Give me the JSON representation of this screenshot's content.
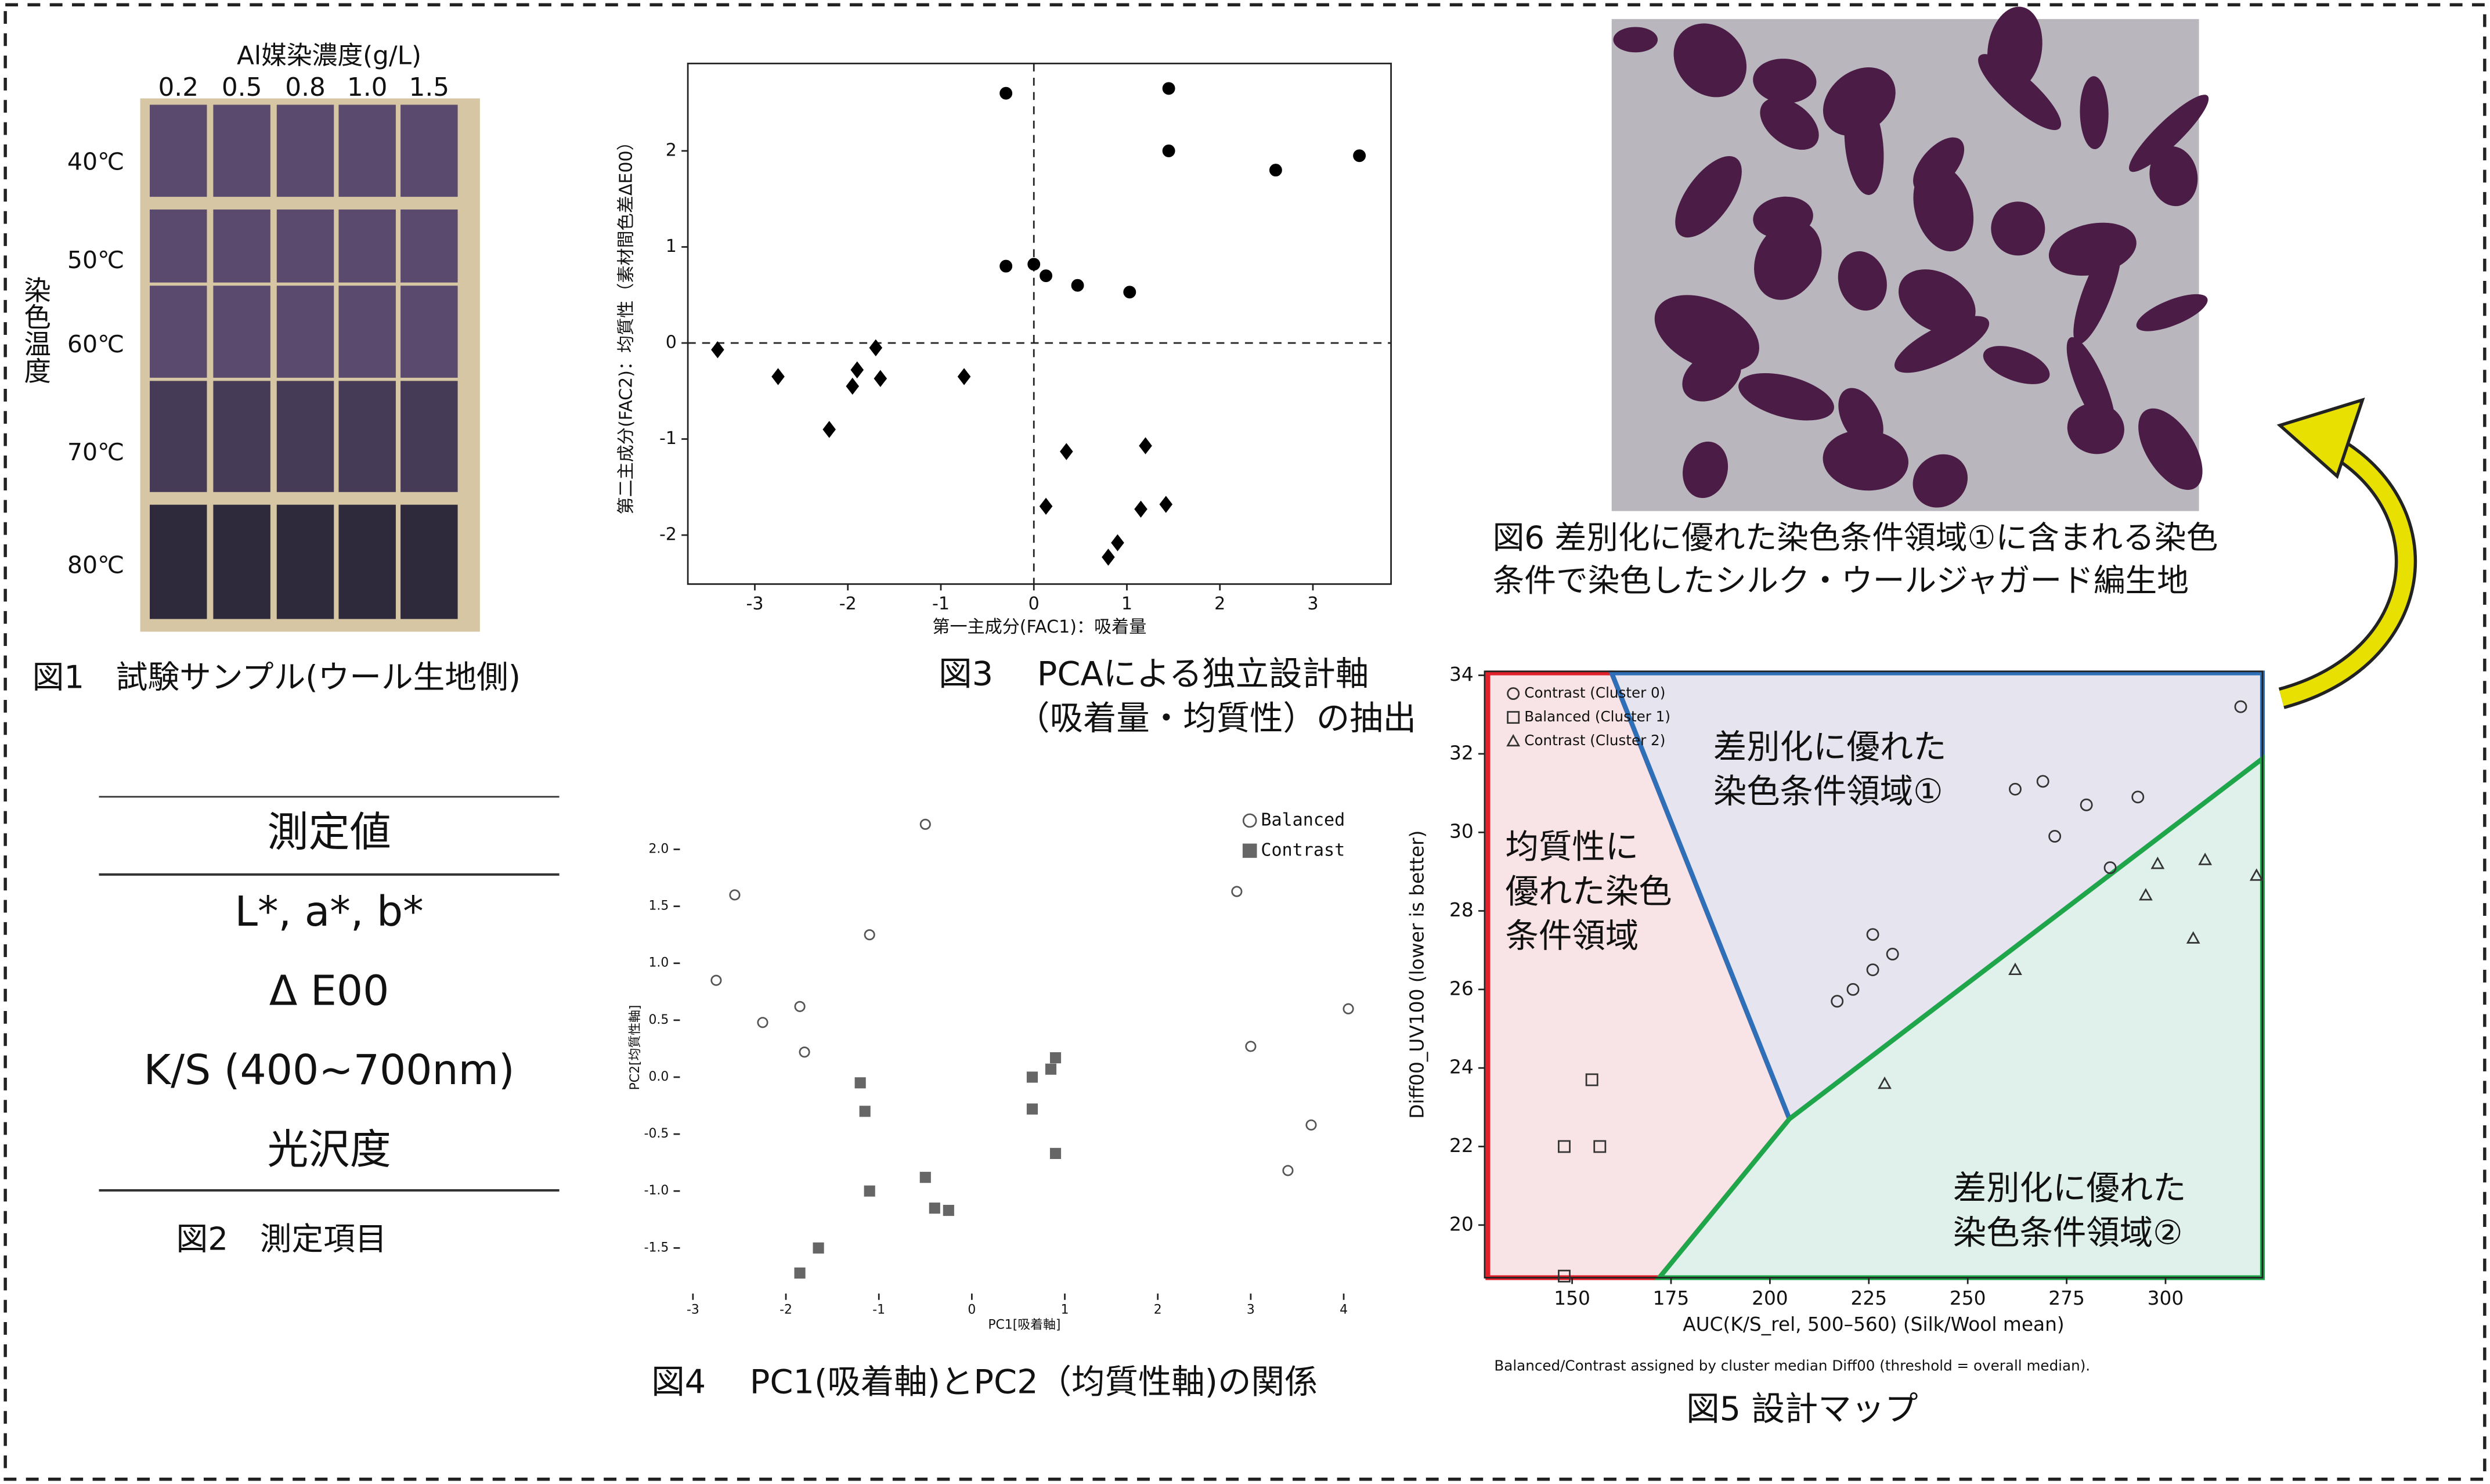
{
  "fig1": {
    "axis_title": "Al媒染濃度(g/L)",
    "concentrations": [
      "0.2",
      "0.5",
      "0.8",
      "1.0",
      "1.5"
    ],
    "temperatures": [
      "40℃",
      "50℃",
      "60℃",
      "70℃",
      "80℃"
    ],
    "row_title": "染色温度",
    "caption": "図1　試験サンプル(ウール生地側)"
  },
  "fig2": {
    "header": "測定値",
    "rows": [
      "L*, a*, b*",
      "Δ E00",
      "K/S (400~700nm)",
      "光沢度"
    ],
    "caption": "図2　測定項目"
  },
  "chart_data": [
    {
      "type": "scatter",
      "caption": [
        "図3　 PCAによる独立設計軸",
        "（吸着量・均質性）の抽出"
      ],
      "x_label": "第一主成分(FAC1)：吸着量",
      "y_label": "第二主成分(FAC2)：均質性（素材間色差ΔE00）",
      "xlim": [
        -3.72,
        3.84
      ],
      "ylim": [
        -2.51,
        2.91
      ],
      "xticks": [
        -3,
        -2,
        -1,
        0,
        1,
        2,
        3
      ],
      "yticks": [
        -2,
        -1,
        0,
        1,
        2
      ],
      "frame": true,
      "zero_lines": true,
      "series": [
        {
          "color": "#000000",
          "marker": "circle",
          "filled": true,
          "x": [
            -0.3,
            1.45,
            1.45,
            2.6,
            3.5,
            -0.3,
            0,
            0.13,
            0.47,
            1.03
          ],
          "values": [
            2.6,
            2.65,
            2.0,
            1.8,
            1.95,
            0.8,
            0.82,
            0.7,
            0.6,
            0.53
          ]
        },
        {
          "color": "#000000",
          "marker": "diamond",
          "filled": true,
          "x": [
            -3.4,
            -2.75,
            -2.2,
            -1.95,
            -1.9,
            -1.7,
            -1.65,
            -0.75,
            0.13,
            0.35,
            0.8,
            0.9,
            1.15,
            1.2,
            1.42
          ],
          "values": [
            -0.07,
            -0.35,
            -0.9,
            -0.45,
            -0.28,
            -0.05,
            -0.37,
            -0.35,
            -1.7,
            -1.13,
            -2.23,
            -2.08,
            -1.73,
            -1.07,
            -1.68
          ]
        }
      ]
    },
    {
      "type": "scatter",
      "caption": [
        "図4　 PC1(吸着軸)とPC2（均質性軸)の関係"
      ],
      "x_label": "PC1[吸着軸]",
      "y_label": "PC2[均質性軸]",
      "xlim": [
        -3.14,
        4.27
      ],
      "ylim": [
        -1.9,
        2.42
      ],
      "xticks": [
        -3,
        -2,
        -1,
        0,
        1,
        2,
        3,
        4
      ],
      "yticks": [
        -1.5,
        {
          "value": -1,
          "label": "-1.0"
        },
        -0.5,
        {
          "value": 0,
          "label": "0.0"
        },
        0.5,
        {
          "value": 1,
          "label": "1.0"
        },
        1.5,
        {
          "value": 2,
          "label": "2.0"
        }
      ],
      "frame": false,
      "legend": "upper right",
      "series": [
        {
          "name": "Balanced",
          "color": "#555555",
          "marker": "circle",
          "filled": false,
          "x": [
            -0.5,
            -2.55,
            -1.1,
            -2.75,
            -2.25,
            -1.85,
            -1.8,
            2.85,
            3.0,
            4.05,
            3.65,
            3.4
          ],
          "values": [
            2.22,
            1.6,
            1.25,
            0.85,
            0.48,
            0.62,
            0.22,
            1.63,
            0.27,
            0.6,
            -0.42,
            -0.82
          ]
        },
        {
          "name": "Contrast",
          "color": "#666666",
          "marker": "square",
          "filled": true,
          "x": [
            -1.85,
            -1.65,
            -1.2,
            -1.15,
            -1.1,
            -0.5,
            -0.4,
            -0.25,
            0.65,
            0.65,
            0.85,
            0.9,
            0.9
          ],
          "values": [
            -1.72,
            -1.5,
            -0.05,
            -0.3,
            -1.0,
            -0.88,
            -1.15,
            -1.17,
            0.0,
            -0.28,
            0.07,
            0.17,
            -0.67
          ]
        }
      ]
    },
    {
      "type": "scatter",
      "caption": [
        "図5 設計マップ"
      ],
      "x_label": "AUC(K/S_rel, 500–560)  (Silk/Wool mean)",
      "y_label": "Diff00_UV100  (lower is better)",
      "note": "Balanced/Contrast assigned by cluster median Diff00 (threshold = overall median).",
      "xlim": [
        127.9,
        324.5
      ],
      "ylim": [
        18.66,
        34.1
      ],
      "xticks": [
        150,
        175,
        200,
        225,
        250,
        275,
        300
      ],
      "yticks": [
        20,
        22,
        24,
        26,
        28,
        30,
        32,
        34
      ],
      "frame": true,
      "legend": "upper left",
      "regions": [
        [
          "均質性に",
          "優れた染色",
          "条件領域"
        ],
        [
          "差別化に優れた",
          "染色条件領域①"
        ],
        [
          "差別化に優れた",
          "染色条件領域②"
        ]
      ],
      "series": [
        {
          "name": "Contrast (Cluster 0)",
          "color": "#333333",
          "marker": "circle",
          "filled": false,
          "x": [
            217,
            221,
            226,
            226,
            231,
            262,
            269,
            272,
            280,
            286,
            293,
            319
          ],
          "values": [
            25.7,
            26.0,
            26.5,
            27.4,
            26.9,
            31.1,
            31.3,
            29.9,
            30.7,
            29.1,
            30.9,
            33.2
          ]
        },
        {
          "name": "Balanced (Cluster 1)",
          "color": "#333333",
          "marker": "square",
          "filled": false,
          "x": [
            148,
            155,
            157,
            148
          ],
          "values": [
            22,
            23.7,
            22,
            18.7
          ]
        },
        {
          "name": "Contrast (Cluster 2)",
          "color": "#333333",
          "marker": "triangle",
          "filled": false,
          "x": [
            229,
            262,
            295,
            298,
            307,
            310,
            323
          ],
          "values": [
            23.6,
            26.5,
            28.4,
            29.2,
            27.3,
            29.3,
            28.9
          ]
        }
      ]
    }
  ],
  "fig6": {
    "caption": [
      "図6 差別化に優れた染色条件領域①に含まれる染色",
      "条件で染色したシルク・ウールジャガード編生地"
    ]
  }
}
